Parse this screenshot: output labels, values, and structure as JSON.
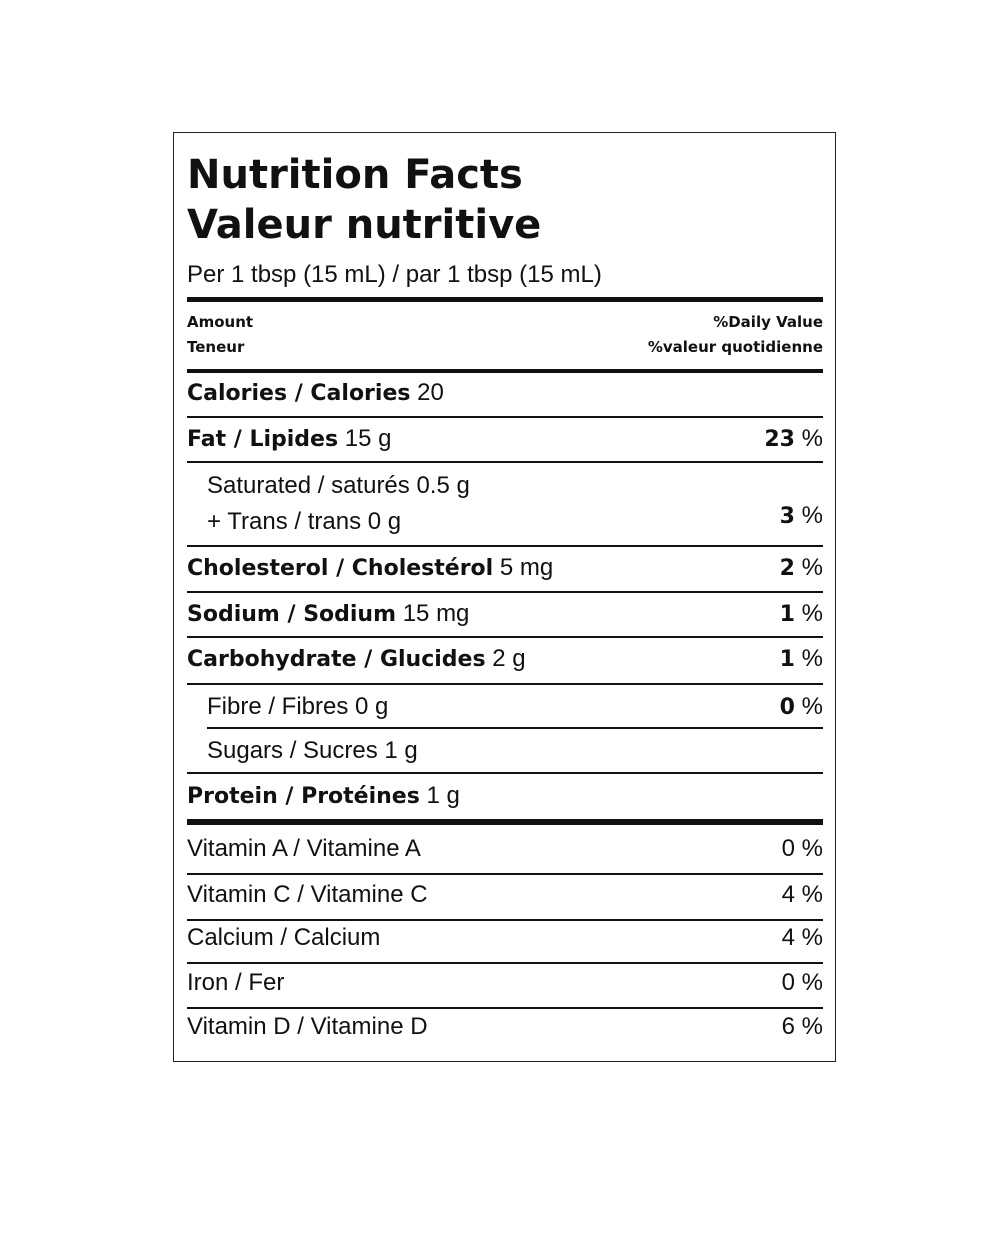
{
  "header": {
    "title": "Nutrition Facts",
    "title_fr": "Valeur nutritive",
    "serving": "Per 1 tbsp (15 mL) / par 1 tbsp (15 mL)"
  },
  "columns": {
    "amount": "Amount",
    "amount_fr": "Teneur",
    "dv": "%Daily Value",
    "dv_fr": "%valeur quotidienne"
  },
  "percent_sign": "%",
  "nutrients": [
    {
      "name": "Calories / Calories",
      "amount": "20"
    },
    {
      "name": "Fat / Lipides",
      "amount": "15 g",
      "dv": "23"
    },
    {
      "saturated": "Saturated / saturés 0.5 g",
      "trans": "+ Trans / trans 0 g",
      "dv": "3"
    },
    {
      "name": "Cholesterol / Cholestérol",
      "amount": "5 mg",
      "dv": "2"
    },
    {
      "name": "Sodium / Sodium",
      "amount": "15 mg",
      "dv": "1"
    },
    {
      "name": "Carbohydrate / Glucides",
      "amount": "2 g",
      "dv": "1"
    },
    {
      "name": "Fibre / Fibres 0 g",
      "dv": "0"
    },
    {
      "name": "Sugars / Sucres 1 g"
    },
    {
      "name": "Protein / Protéines",
      "amount": "1 g"
    }
  ],
  "vitamins": [
    {
      "name": "Vitamin A / Vitamine A",
      "dv": "0 %"
    },
    {
      "name": "Vitamin C / Vitamine C",
      "dv": "4 %"
    },
    {
      "name": "Calcium / Calcium",
      "dv": "4 %"
    },
    {
      "name": "Iron / Fer",
      "dv": "0 %"
    },
    {
      "name": "Vitamin D / Vitamine D",
      "dv": "6 %"
    }
  ]
}
